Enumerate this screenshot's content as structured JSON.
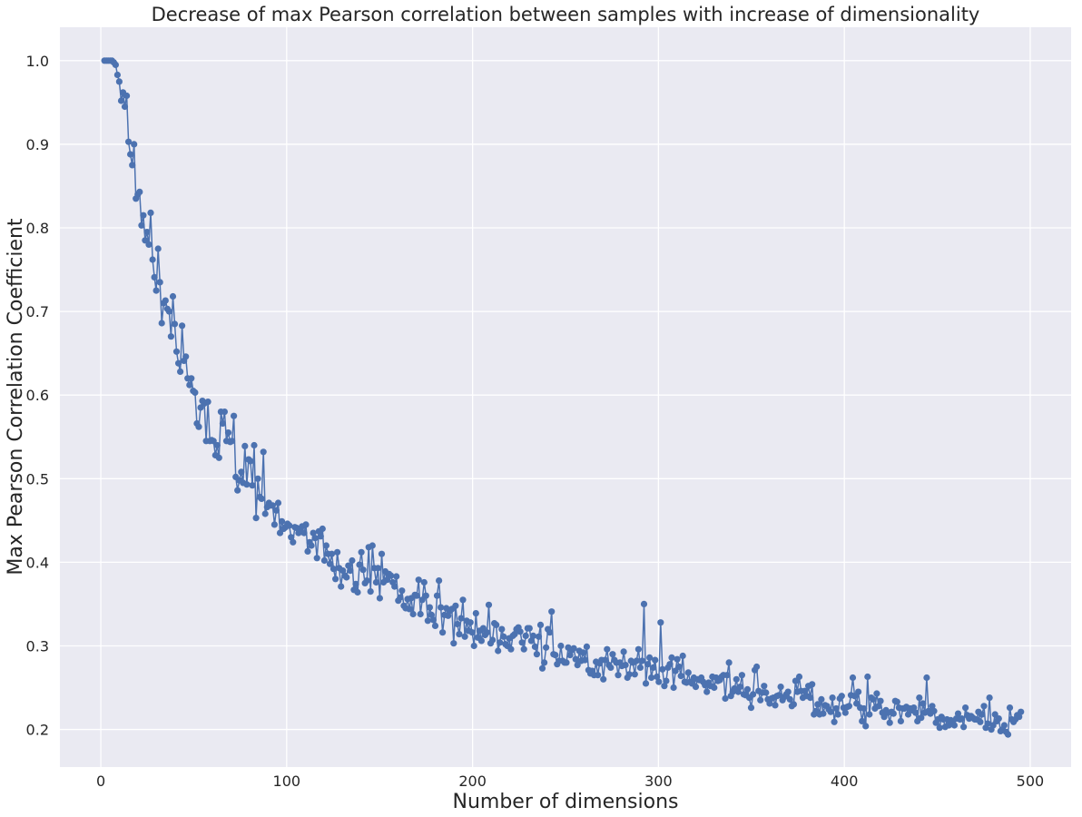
{
  "chart_data": {
    "type": "line",
    "title": "Decrease of max Pearson correlation between samples with increase of dimensionality",
    "xlabel": "Number of dimensions",
    "ylabel": "Max Pearson Correlation Coefficient",
    "xlim": [
      -22,
      522
    ],
    "ylim": [
      0.155,
      1.04
    ],
    "xticks": [
      0,
      100,
      200,
      300,
      400,
      500
    ],
    "xtick_labels": [
      "0",
      "100",
      "200",
      "300",
      "400",
      "500"
    ],
    "yticks": [
      0.2,
      0.3,
      0.4,
      0.5,
      0.6,
      0.7,
      0.8,
      0.9,
      1.0
    ],
    "ytick_labels": [
      "0.2",
      "0.3",
      "0.4",
      "0.5",
      "0.6",
      "0.7",
      "0.8",
      "0.9",
      "1.0"
    ],
    "grid": true,
    "legend": "none",
    "colors": {
      "series": "#4c72b0",
      "background": "#eaeaf2",
      "grid": "#ffffff"
    },
    "x_start": 2,
    "x_end": 495,
    "series": [
      {
        "values": [
          1.0,
          1.0,
          1.0,
          1.0,
          1.0,
          0.998,
          0.995,
          0.983,
          0.975,
          0.952,
          0.962,
          0.945,
          0.958,
          0.903,
          0.888,
          0.875,
          0.9,
          0.835,
          0.84,
          0.843,
          0.803,
          0.815,
          0.785,
          0.795,
          0.78,
          0.818,
          0.762,
          0.741,
          0.725,
          0.775,
          0.735,
          0.686,
          0.71,
          0.713,
          0.703,
          0.7,
          0.67,
          0.718,
          0.685,
          0.652,
          0.638,
          0.628,
          0.683,
          0.641,
          0.646,
          0.62,
          0.612,
          0.62,
          0.605,
          0.603,
          0.566,
          0.562,
          0.585,
          0.593,
          0.59,
          0.545,
          0.592,
          0.545,
          0.546,
          0.545,
          0.528,
          0.54,
          0.525,
          0.58,
          0.566,
          0.58,
          0.545,
          0.555,
          0.544,
          0.545,
          0.575,
          0.502,
          0.486,
          0.498,
          0.508,
          0.495,
          0.539,
          0.493,
          0.523,
          0.521,
          0.492,
          0.54,
          0.453,
          0.5,
          0.478,
          0.476,
          0.532,
          0.458,
          0.466,
          0.471,
          0.468,
          0.468,
          0.445,
          0.462,
          0.471,
          0.435,
          0.449,
          0.44,
          0.442,
          0.446,
          0.444,
          0.43,
          0.424,
          0.442,
          0.441,
          0.435,
          0.437,
          0.443,
          0.435,
          0.445,
          0.413,
          0.424,
          0.42,
          0.435,
          0.429,
          0.405,
          0.437,
          0.431,
          0.44,
          0.402,
          0.42,
          0.41,
          0.398,
          0.41,
          0.392,
          0.38,
          0.412,
          0.393,
          0.371,
          0.39,
          0.384,
          0.382,
          0.396,
          0.39,
          0.402,
          0.367,
          0.374,
          0.364,
          0.397,
          0.412,
          0.391,
          0.375,
          0.378,
          0.418,
          0.365,
          0.42,
          0.393,
          0.376,
          0.393,
          0.357,
          0.41,
          0.376,
          0.389,
          0.379,
          0.386,
          0.384,
          0.376,
          0.371,
          0.383,
          0.354,
          0.358,
          0.366,
          0.348,
          0.345,
          0.356,
          0.344,
          0.357,
          0.338,
          0.361,
          0.36,
          0.379,
          0.338,
          0.355,
          0.376,
          0.36,
          0.33,
          0.346,
          0.337,
          0.331,
          0.324,
          0.36,
          0.378,
          0.346,
          0.316,
          0.337,
          0.345,
          0.336,
          0.342,
          0.344,
          0.303,
          0.348,
          0.326,
          0.314,
          0.333,
          0.355,
          0.311,
          0.33,
          0.318,
          0.328,
          0.316,
          0.3,
          0.339,
          0.31,
          0.318,
          0.306,
          0.321,
          0.313,
          0.316,
          0.349,
          0.303,
          0.307,
          0.327,
          0.325,
          0.294,
          0.304,
          0.32,
          0.311,
          0.302,
          0.3,
          0.309,
          0.296,
          0.312,
          0.314,
          0.32,
          0.322,
          0.317,
          0.304,
          0.296,
          0.312,
          0.321,
          0.321,
          0.306,
          0.312,
          0.299,
          0.29,
          0.311,
          0.325,
          0.273,
          0.28,
          0.298,
          0.32,
          0.316,
          0.341,
          0.29,
          0.289,
          0.278,
          0.282,
          0.3,
          0.282,
          0.28,
          0.28,
          0.298,
          0.289,
          0.295,
          0.297,
          0.284,
          0.277,
          0.294,
          0.282,
          0.292,
          0.283,
          0.299,
          0.271,
          0.267,
          0.27,
          0.265,
          0.281,
          0.265,
          0.279,
          0.283,
          0.26,
          0.283,
          0.296,
          0.277,
          0.274,
          0.29,
          0.283,
          0.28,
          0.265,
          0.28,
          0.276,
          0.293,
          0.277,
          0.262,
          0.266,
          0.282,
          0.28,
          0.266,
          0.282,
          0.296,
          0.274,
          0.282,
          0.35,
          0.255,
          0.278,
          0.286,
          0.262,
          0.274,
          0.283,
          0.263,
          0.257,
          0.328,
          0.272,
          0.252,
          0.258,
          0.274,
          0.278,
          0.286,
          0.25,
          0.27,
          0.284,
          0.275,
          0.264,
          0.288,
          0.257,
          0.256,
          0.268,
          0.257,
          0.255,
          0.262,
          0.251,
          0.26,
          0.259,
          0.262,
          0.257,
          0.253,
          0.245,
          0.256,
          0.252,
          0.263,
          0.25,
          0.262,
          0.258,
          0.259,
          0.263,
          0.265,
          0.237,
          0.265,
          0.28,
          0.24,
          0.245,
          0.249,
          0.26,
          0.245,
          0.251,
          0.265,
          0.242,
          0.241,
          0.248,
          0.238,
          0.226,
          0.242,
          0.271,
          0.275,
          0.246,
          0.235,
          0.244,
          0.252,
          0.244,
          0.236,
          0.231,
          0.237,
          0.238,
          0.229,
          0.24,
          0.241,
          0.251,
          0.235,
          0.239,
          0.242,
          0.245,
          0.236,
          0.228,
          0.23,
          0.258,
          0.245,
          0.263,
          0.246,
          0.238,
          0.246,
          0.24,
          0.252,
          0.238,
          0.254,
          0.218,
          0.222,
          0.23,
          0.218,
          0.236,
          0.219,
          0.229,
          0.228,
          0.224,
          0.221,
          0.238,
          0.209,
          0.225,
          0.218,
          0.237,
          0.24,
          0.226,
          0.22,
          0.227,
          0.228,
          0.241,
          0.262,
          0.24,
          0.231,
          0.245,
          0.226,
          0.21,
          0.225,
          0.204,
          0.263,
          0.218,
          0.238,
          0.236,
          0.225,
          0.243,
          0.228,
          0.234,
          0.22,
          0.215,
          0.223,
          0.22,
          0.208,
          0.221,
          0.219,
          0.234,
          0.233,
          0.226,
          0.21,
          0.225,
          0.225,
          0.227,
          0.218,
          0.225,
          0.223,
          0.226,
          0.22,
          0.21,
          0.238,
          0.214,
          0.231,
          0.22,
          0.262,
          0.222,
          0.219,
          0.228,
          0.222,
          0.208,
          0.212,
          0.202,
          0.215,
          0.212,
          0.203,
          0.212,
          0.205,
          0.211,
          0.21,
          0.205,
          0.213,
          0.219,
          0.212,
          0.213,
          0.203,
          0.226,
          0.217,
          0.213,
          0.216,
          0.214,
          0.212,
          0.212,
          0.221,
          0.209,
          0.218,
          0.228,
          0.202,
          0.207,
          0.238,
          0.2,
          0.205,
          0.218,
          0.21,
          0.213,
          0.198,
          0.2,
          0.205,
          0.197,
          0.194,
          0.226,
          0.212,
          0.209,
          0.212,
          0.217,
          0.215,
          0.221
        ]
      }
    ]
  }
}
